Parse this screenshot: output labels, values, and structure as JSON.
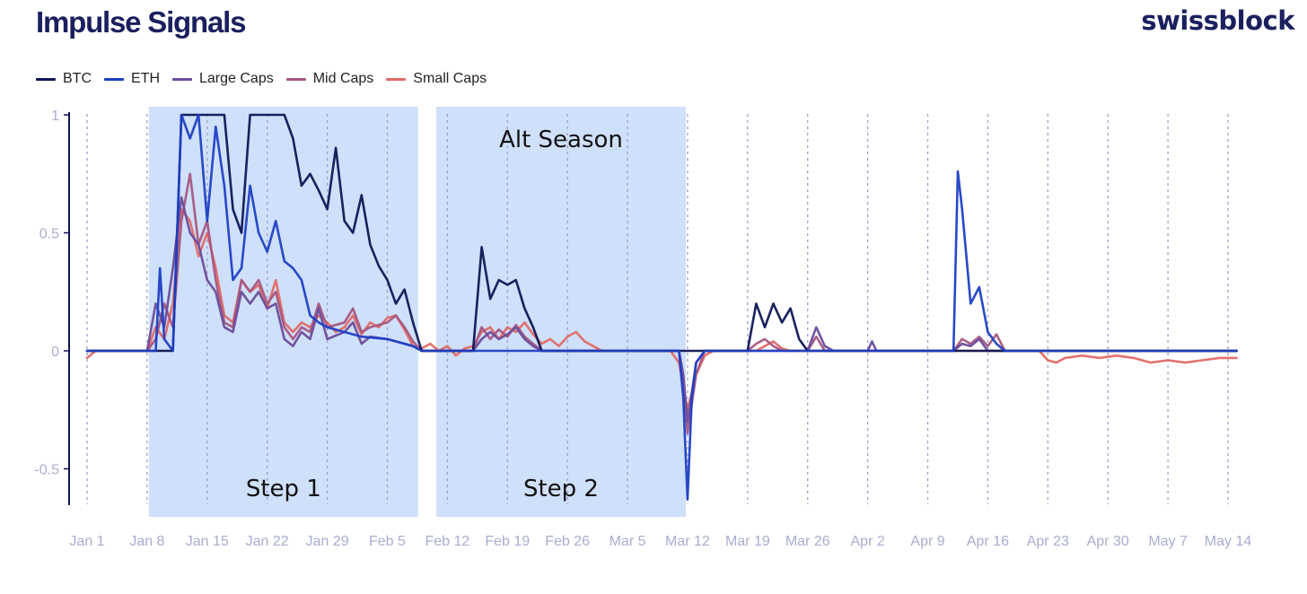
{
  "header": {
    "title": "Impulse Signals",
    "brand": "swissblock"
  },
  "chart_data": {
    "type": "line",
    "title": "Impulse Signals",
    "xlabel": "",
    "ylabel": "",
    "x_unit": "days since Jan 1",
    "xlim": [
      0,
      134
    ],
    "ylim": [
      -0.65,
      1.0
    ],
    "x_ticks": [
      {
        "label": "Jan 1",
        "x": 0
      },
      {
        "label": "Jan 8",
        "x": 7
      },
      {
        "label": "Jan 15",
        "x": 14
      },
      {
        "label": "Jan 22",
        "x": 21
      },
      {
        "label": "Jan 29",
        "x": 28
      },
      {
        "label": "Feb 5",
        "x": 35
      },
      {
        "label": "Feb 12",
        "x": 42
      },
      {
        "label": "Feb 19",
        "x": 49
      },
      {
        "label": "Feb 26",
        "x": 56
      },
      {
        "label": "Mar 5",
        "x": 63
      },
      {
        "label": "Mar 12",
        "x": 70
      },
      {
        "label": "Mar 19",
        "x": 77
      },
      {
        "label": "Mar 26",
        "x": 84
      },
      {
        "label": "Apr 2",
        "x": 91
      },
      {
        "label": "Apr 9",
        "x": 98
      },
      {
        "label": "Apr 16",
        "x": 105
      },
      {
        "label": "Apr 23",
        "x": 112
      },
      {
        "label": "Apr 30",
        "x": 119
      },
      {
        "label": "May 7",
        "x": 126
      },
      {
        "label": "May 14",
        "x": 133
      }
    ],
    "y_ticks": [
      {
        "label": "1",
        "value": 1.0
      },
      {
        "label": "0.5",
        "value": 0.5
      },
      {
        "label": "0",
        "value": 0.0
      },
      {
        "label": "-0.5",
        "value": -0.5
      }
    ],
    "bands": [
      {
        "x0": 7.2,
        "x1": 38.6,
        "label": "Step 1",
        "top_label": ""
      },
      {
        "x0": 40.7,
        "x1": 69.8,
        "label": "Step 2",
        "top_label": "Alt Season"
      }
    ],
    "grid": "vertical dashed at weekly ticks",
    "legend_position": "top-left",
    "series": [
      {
        "name": "BTC",
        "color": "#0d1654",
        "points": [
          [
            0,
            0
          ],
          [
            7,
            0
          ],
          [
            10,
            0
          ],
          [
            11,
            1
          ],
          [
            12,
            1
          ],
          [
            13,
            1
          ],
          [
            14,
            1
          ],
          [
            15,
            1
          ],
          [
            16,
            1
          ],
          [
            17,
            0.6
          ],
          [
            18,
            0.5
          ],
          [
            19,
            1
          ],
          [
            20,
            1
          ],
          [
            21,
            1
          ],
          [
            22,
            1
          ],
          [
            23,
            1
          ],
          [
            24,
            0.9
          ],
          [
            25,
            0.7
          ],
          [
            26,
            0.75
          ],
          [
            27,
            0.68
          ],
          [
            28,
            0.6
          ],
          [
            29,
            0.86
          ],
          [
            30,
            0.55
          ],
          [
            31,
            0.5
          ],
          [
            32,
            0.66
          ],
          [
            33,
            0.45
          ],
          [
            34,
            0.36
          ],
          [
            35,
            0.3
          ],
          [
            36,
            0.2
          ],
          [
            37,
            0.26
          ],
          [
            38,
            0.12
          ],
          [
            39,
            0
          ],
          [
            45,
            0
          ],
          [
            46,
            0.44
          ],
          [
            47,
            0.22
          ],
          [
            48,
            0.3
          ],
          [
            49,
            0.28
          ],
          [
            50,
            0.3
          ],
          [
            51,
            0.18
          ],
          [
            52,
            0.1
          ],
          [
            53,
            0
          ],
          [
            70,
            0
          ],
          [
            77,
            0
          ],
          [
            78,
            0.2
          ],
          [
            79,
            0.1
          ],
          [
            80,
            0.2
          ],
          [
            81,
            0.12
          ],
          [
            82,
            0.18
          ],
          [
            83,
            0.05
          ],
          [
            84,
            0
          ],
          [
            134,
            0
          ]
        ]
      },
      {
        "name": "ETH",
        "color": "#1d3fc4",
        "points": [
          [
            0,
            0
          ],
          [
            8,
            0
          ],
          [
            8.5,
            0.35
          ],
          [
            9,
            0.05
          ],
          [
            10,
            0
          ],
          [
            11,
            1
          ],
          [
            12,
            0.9
          ],
          [
            13,
            1
          ],
          [
            14,
            0.55
          ],
          [
            15,
            0.95
          ],
          [
            16,
            0.7
          ],
          [
            17,
            0.3
          ],
          [
            18,
            0.35
          ],
          [
            19,
            0.7
          ],
          [
            20,
            0.5
          ],
          [
            21,
            0.42
          ],
          [
            22,
            0.55
          ],
          [
            23,
            0.38
          ],
          [
            24,
            0.35
          ],
          [
            25,
            0.3
          ],
          [
            26,
            0.15
          ],
          [
            27,
            0.12
          ],
          [
            28,
            0.1
          ],
          [
            30,
            0.08
          ],
          [
            32,
            0.06
          ],
          [
            35,
            0.05
          ],
          [
            38,
            0.02
          ],
          [
            39,
            0
          ],
          [
            69,
            0
          ],
          [
            69.5,
            -0.2
          ],
          [
            70,
            -0.63
          ],
          [
            70.5,
            -0.2
          ],
          [
            71,
            -0.05
          ],
          [
            72,
            0
          ],
          [
            101,
            0
          ],
          [
            101.5,
            0.76
          ],
          [
            102,
            0.6
          ],
          [
            103,
            0.2
          ],
          [
            104,
            0.27
          ],
          [
            105,
            0.08
          ],
          [
            106,
            0.03
          ],
          [
            107,
            0
          ],
          [
            134,
            0
          ]
        ]
      },
      {
        "name": "Large Caps",
        "color": "#6a4c9a",
        "points": [
          [
            0,
            0
          ],
          [
            7,
            0
          ],
          [
            8,
            0.2
          ],
          [
            9,
            0.1
          ],
          [
            10,
            0.35
          ],
          [
            11,
            0.65
          ],
          [
            12,
            0.5
          ],
          [
            13,
            0.45
          ],
          [
            14,
            0.3
          ],
          [
            15,
            0.25
          ],
          [
            16,
            0.1
          ],
          [
            17,
            0.08
          ],
          [
            18,
            0.25
          ],
          [
            19,
            0.2
          ],
          [
            20,
            0.25
          ],
          [
            21,
            0.18
          ],
          [
            22,
            0.2
          ],
          [
            23,
            0.05
          ],
          [
            24,
            0.02
          ],
          [
            25,
            0.08
          ],
          [
            26,
            0.05
          ],
          [
            27,
            0.18
          ],
          [
            28,
            0.05
          ],
          [
            30,
            0.08
          ],
          [
            31,
            0.12
          ],
          [
            32,
            0.03
          ],
          [
            33,
            0.06
          ],
          [
            35,
            0.05
          ],
          [
            38,
            0.02
          ],
          [
            39,
            0
          ],
          [
            45,
            0
          ],
          [
            46,
            0.05
          ],
          [
            47,
            0.08
          ],
          [
            48,
            0.05
          ],
          [
            49,
            0.07
          ],
          [
            50,
            0.1
          ],
          [
            51,
            0.05
          ],
          [
            52,
            0.02
          ],
          [
            53,
            0
          ],
          [
            69,
            0
          ],
          [
            69.5,
            -0.1
          ],
          [
            70,
            -0.3
          ],
          [
            71,
            -0.05
          ],
          [
            72,
            0
          ],
          [
            84,
            0
          ],
          [
            85,
            0.1
          ],
          [
            86,
            0.02
          ],
          [
            87,
            0
          ],
          [
            91,
            0
          ],
          [
            91.5,
            0.04
          ],
          [
            92,
            0
          ],
          [
            101,
            0
          ],
          [
            102,
            0.03
          ],
          [
            103,
            0.02
          ],
          [
            104,
            0.05
          ],
          [
            105,
            0
          ],
          [
            134,
            0
          ]
        ]
      },
      {
        "name": "Mid Caps",
        "color": "#a55680",
        "points": [
          [
            0,
            0
          ],
          [
            7,
            0
          ],
          [
            8,
            0.05
          ],
          [
            9,
            0.2
          ],
          [
            10,
            0.1
          ],
          [
            11,
            0.55
          ],
          [
            12,
            0.75
          ],
          [
            13,
            0.45
          ],
          [
            14,
            0.55
          ],
          [
            15,
            0.3
          ],
          [
            16,
            0.12
          ],
          [
            17,
            0.1
          ],
          [
            18,
            0.3
          ],
          [
            19,
            0.25
          ],
          [
            20,
            0.3
          ],
          [
            21,
            0.2
          ],
          [
            22,
            0.25
          ],
          [
            23,
            0.1
          ],
          [
            24,
            0.05
          ],
          [
            25,
            0.1
          ],
          [
            26,
            0.08
          ],
          [
            27,
            0.2
          ],
          [
            28,
            0.1
          ],
          [
            30,
            0.12
          ],
          [
            31,
            0.18
          ],
          [
            32,
            0.08
          ],
          [
            33,
            0.1
          ],
          [
            35,
            0.12
          ],
          [
            36,
            0.15
          ],
          [
            37,
            0.1
          ],
          [
            38,
            0.04
          ],
          [
            39,
            0
          ],
          [
            45,
            0
          ],
          [
            46,
            0.1
          ],
          [
            47,
            0.05
          ],
          [
            48,
            0.09
          ],
          [
            49,
            0.06
          ],
          [
            50,
            0.11
          ],
          [
            51,
            0.06
          ],
          [
            52,
            0.03
          ],
          [
            53,
            0
          ],
          [
            69,
            0
          ],
          [
            69.5,
            -0.15
          ],
          [
            70,
            -0.35
          ],
          [
            71,
            -0.1
          ],
          [
            72,
            0
          ],
          [
            77,
            0
          ],
          [
            78,
            0.03
          ],
          [
            79,
            0.05
          ],
          [
            80,
            0.02
          ],
          [
            81,
            0
          ],
          [
            84,
            0
          ],
          [
            85,
            0.06
          ],
          [
            86,
            0
          ],
          [
            101,
            0
          ],
          [
            102,
            0.05
          ],
          [
            103,
            0.03
          ],
          [
            104,
            0.06
          ],
          [
            105,
            0.02
          ],
          [
            106,
            0.07
          ],
          [
            107,
            0
          ],
          [
            134,
            0
          ]
        ]
      },
      {
        "name": "Small Caps",
        "color": "#e06a66",
        "points": [
          [
            0,
            -0.03
          ],
          [
            1,
            0
          ],
          [
            7,
            0
          ],
          [
            8,
            0.1
          ],
          [
            9,
            0.05
          ],
          [
            10,
            0.2
          ],
          [
            11,
            0.6
          ],
          [
            12,
            0.55
          ],
          [
            13,
            0.4
          ],
          [
            14,
            0.5
          ],
          [
            15,
            0.35
          ],
          [
            16,
            0.15
          ],
          [
            17,
            0.12
          ],
          [
            18,
            0.3
          ],
          [
            19,
            0.25
          ],
          [
            20,
            0.28
          ],
          [
            21,
            0.18
          ],
          [
            22,
            0.3
          ],
          [
            23,
            0.12
          ],
          [
            24,
            0.08
          ],
          [
            25,
            0.12
          ],
          [
            26,
            0.1
          ],
          [
            27,
            0.15
          ],
          [
            28,
            0.12
          ],
          [
            29,
            0.08
          ],
          [
            30,
            0.1
          ],
          [
            31,
            0.15
          ],
          [
            32,
            0.07
          ],
          [
            33,
            0.12
          ],
          [
            34,
            0.1
          ],
          [
            35,
            0.14
          ],
          [
            36,
            0.15
          ],
          [
            37,
            0.09
          ],
          [
            38,
            0.02
          ],
          [
            39,
            0.01
          ],
          [
            40,
            0.03
          ],
          [
            41,
            0
          ],
          [
            42,
            0.02
          ],
          [
            43,
            -0.02
          ],
          [
            44,
            0.01
          ],
          [
            45,
            0.02
          ],
          [
            46,
            0.08
          ],
          [
            47,
            0.1
          ],
          [
            48,
            0.05
          ],
          [
            49,
            0.1
          ],
          [
            50,
            0.08
          ],
          [
            51,
            0.12
          ],
          [
            52,
            0.07
          ],
          [
            53,
            0.03
          ],
          [
            54,
            0.05
          ],
          [
            55,
            0.02
          ],
          [
            56,
            0.06
          ],
          [
            57,
            0.08
          ],
          [
            58,
            0.04
          ],
          [
            59,
            0.02
          ],
          [
            60,
            0
          ],
          [
            68,
            0
          ],
          [
            69,
            -0.05
          ],
          [
            69.5,
            -0.15
          ],
          [
            70,
            -0.25
          ],
          [
            71,
            -0.1
          ],
          [
            72,
            -0.02
          ],
          [
            73,
            0
          ],
          [
            78,
            0
          ],
          [
            79,
            0.02
          ],
          [
            80,
            0.04
          ],
          [
            81,
            0.01
          ],
          [
            82,
            0
          ],
          [
            111,
            0
          ],
          [
            112,
            -0.04
          ],
          [
            113,
            -0.05
          ],
          [
            114,
            -0.03
          ],
          [
            116,
            -0.02
          ],
          [
            118,
            -0.03
          ],
          [
            120,
            -0.02
          ],
          [
            122,
            -0.03
          ],
          [
            124,
            -0.05
          ],
          [
            126,
            -0.04
          ],
          [
            128,
            -0.05
          ],
          [
            130,
            -0.04
          ],
          [
            132,
            -0.03
          ],
          [
            134,
            -0.03
          ]
        ]
      }
    ]
  }
}
